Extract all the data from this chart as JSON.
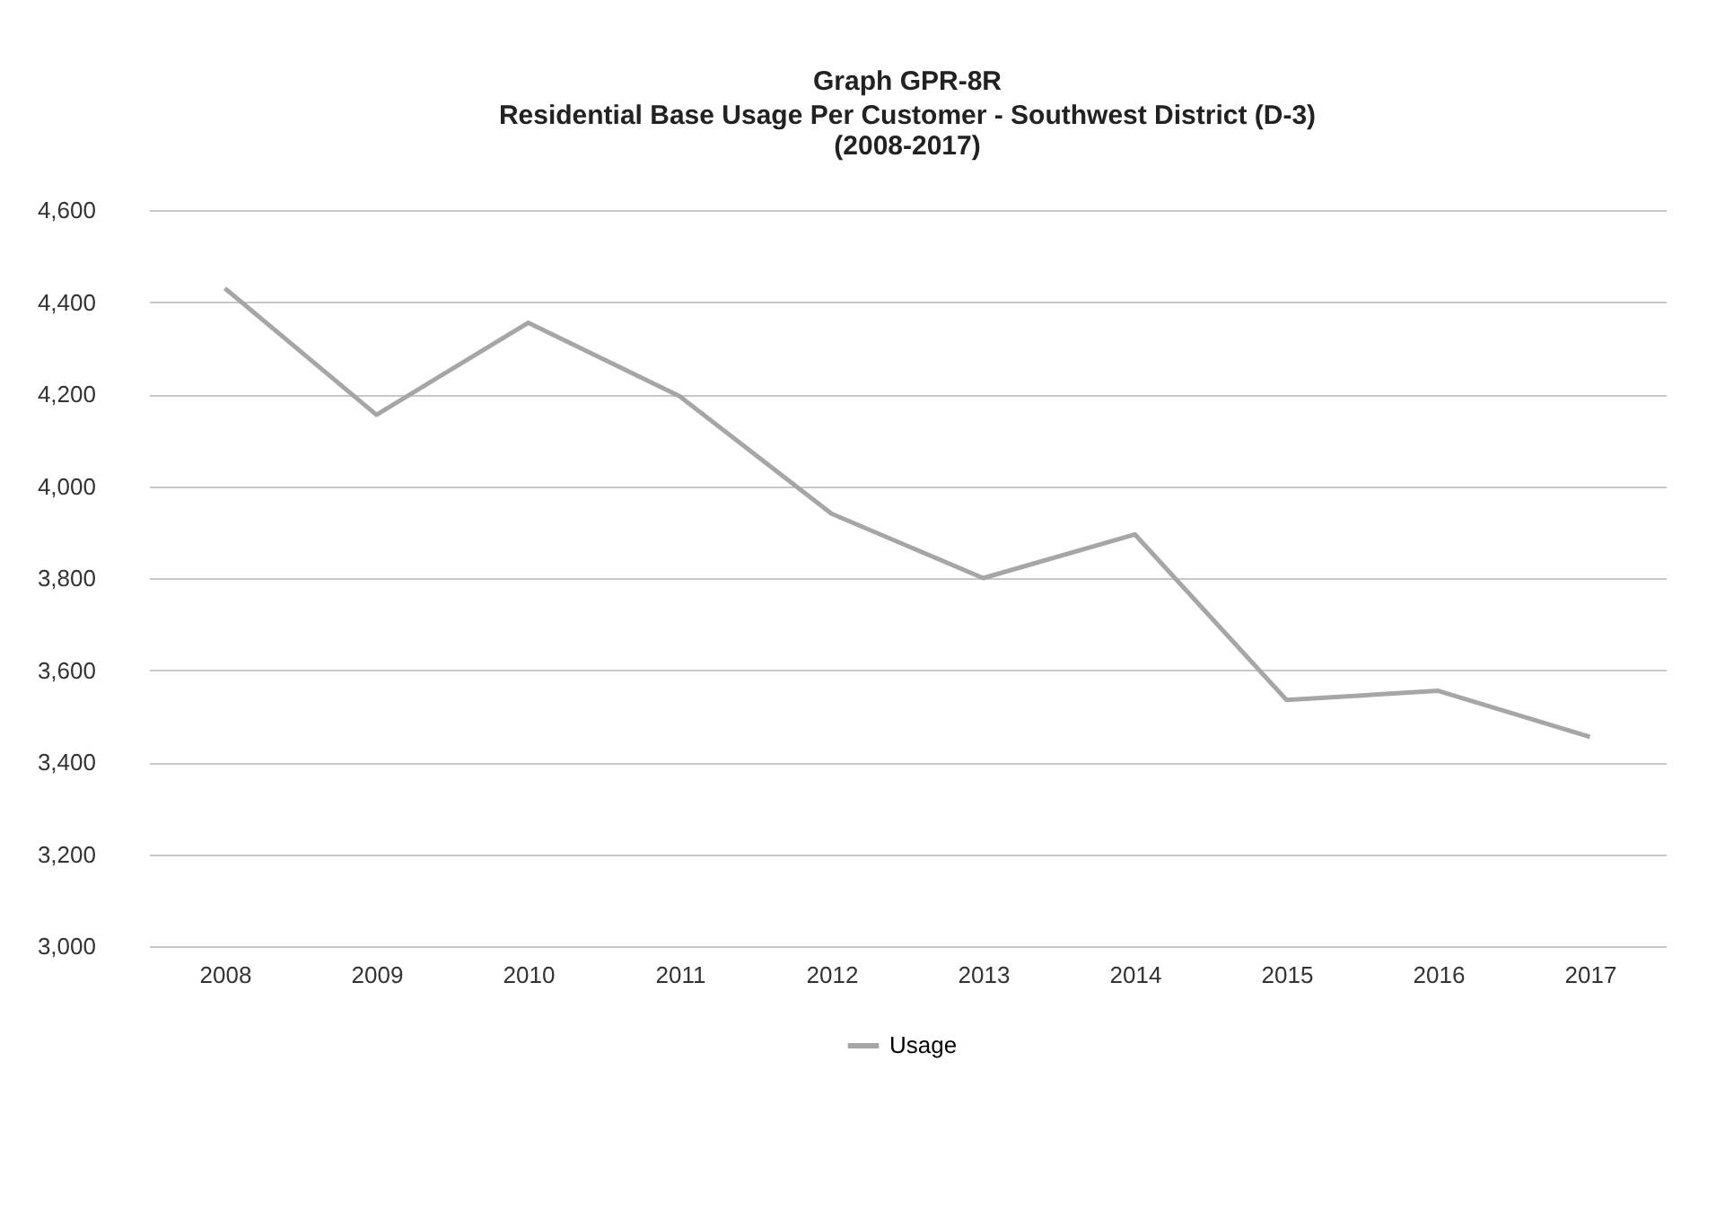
{
  "chart_data": {
    "type": "line",
    "title": "Graph GPR-8R",
    "subtitle": "Residential Base Usage Per Customer -  Southwest District (D-3)\n(2008-2017)",
    "categories": [
      "2008",
      "2009",
      "2010",
      "2011",
      "2012",
      "2013",
      "2014",
      "2015",
      "2016",
      "2017"
    ],
    "series": [
      {
        "name": "Usage",
        "color": "#a6a6a6",
        "values": [
          4430,
          4155,
          4355,
          4195,
          3940,
          3800,
          3895,
          3535,
          3555,
          3455
        ]
      }
    ],
    "ylim": [
      3000,
      4600
    ],
    "yticks": [
      {
        "value": 3000,
        "label": "3,000"
      },
      {
        "value": 3200,
        "label": "3,200"
      },
      {
        "value": 3400,
        "label": "3,400"
      },
      {
        "value": 3600,
        "label": "3,600"
      },
      {
        "value": 3800,
        "label": "3,800"
      },
      {
        "value": 4000,
        "label": "4,000"
      },
      {
        "value": 4200,
        "label": "4,200"
      },
      {
        "value": 4400,
        "label": "4,400"
      },
      {
        "value": 4600,
        "label": "4,600"
      }
    ],
    "grid": "y",
    "legend": "bottom",
    "marker": "none",
    "line_style": "solid"
  }
}
